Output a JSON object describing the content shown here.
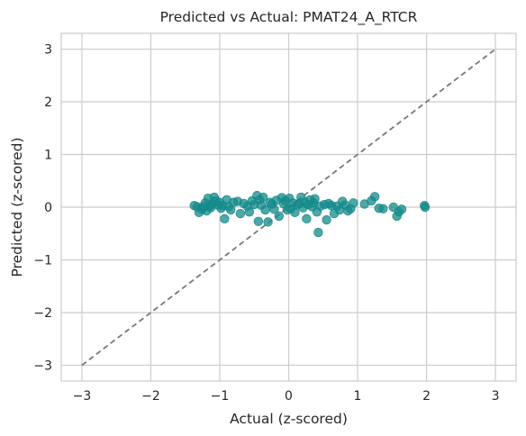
{
  "chart_data": {
    "type": "scatter",
    "title": "Predicted vs Actual: PMAT24_A_RTCR",
    "xlabel": "Actual (z-scored)",
    "ylabel": "Predicted (z-scored)",
    "xlim": [
      -3.3,
      3.3
    ],
    "ylim": [
      -3.3,
      3.3
    ],
    "xticks": [
      -3,
      -2,
      -1,
      0,
      1,
      2,
      3
    ],
    "yticks": [
      -3,
      -2,
      -1,
      0,
      1,
      2,
      3
    ],
    "xtick_labels": [
      "−3",
      "−2",
      "−1",
      "0",
      "1",
      "2",
      "3"
    ],
    "ytick_labels": [
      "−3",
      "−2",
      "−1",
      "0",
      "1",
      "2",
      "3"
    ],
    "grid": true,
    "reference_line": {
      "style": "dashed",
      "from": [
        -3,
        -3
      ],
      "to": [
        3,
        3
      ],
      "color": "#777777"
    },
    "point_color": "#148a8a",
    "points": [
      [
        -1.37,
        0.03
      ],
      [
        -1.33,
        0.01
      ],
      [
        -1.3,
        -0.1
      ],
      [
        -1.26,
        -0.04
      ],
      [
        -1.24,
        0.01
      ],
      [
        -1.21,
        0.08
      ],
      [
        -1.19,
        -0.07
      ],
      [
        -1.17,
        0.17
      ],
      [
        -1.15,
        0.02
      ],
      [
        -1.13,
        -0.01
      ],
      [
        -1.11,
        0.06
      ],
      [
        -1.08,
        0.19
      ],
      [
        -1.06,
        0.12
      ],
      [
        -1.03,
        0.04
      ],
      [
        -1.0,
        0.09
      ],
      [
        -0.98,
        -0.02
      ],
      [
        -0.96,
        0.03
      ],
      [
        -0.93,
        -0.22
      ],
      [
        -0.9,
        0.14
      ],
      [
        -0.87,
        0.01
      ],
      [
        -0.84,
        -0.05
      ],
      [
        -0.8,
        0.09
      ],
      [
        -0.74,
        0.11
      ],
      [
        -0.7,
        -0.12
      ],
      [
        -0.65,
        0.07
      ],
      [
        -0.6,
        0.02
      ],
      [
        -0.57,
        -0.09
      ],
      [
        -0.53,
        0.12
      ],
      [
        -0.5,
        0.05
      ],
      [
        -0.46,
        0.22
      ],
      [
        -0.44,
        -0.27
      ],
      [
        -0.42,
        0.14
      ],
      [
        -0.4,
        0.04
      ],
      [
        -0.37,
        0.19
      ],
      [
        -0.34,
        -0.05
      ],
      [
        -0.3,
        -0.28
      ],
      [
        -0.27,
        0.09
      ],
      [
        -0.24,
        0.06
      ],
      [
        -0.21,
        -0.04
      ],
      [
        -0.18,
        0.13
      ],
      [
        -0.14,
        -0.17
      ],
      [
        -0.1,
        0.18
      ],
      [
        -0.07,
        0.06
      ],
      [
        -0.05,
        0.12
      ],
      [
        -0.02,
        -0.05
      ],
      [
        0.01,
        0.17
      ],
      [
        0.03,
        -0.03
      ],
      [
        0.06,
        0.08
      ],
      [
        0.09,
        -0.1
      ],
      [
        0.12,
        0.04
      ],
      [
        0.15,
        0.07
      ],
      [
        0.18,
        0.19
      ],
      [
        0.21,
        -0.01
      ],
      [
        0.23,
        0.1
      ],
      [
        0.26,
        -0.22
      ],
      [
        0.28,
        0.05
      ],
      [
        0.31,
        0.14
      ],
      [
        0.34,
        0.01
      ],
      [
        0.36,
        0.08
      ],
      [
        0.38,
        0.16
      ],
      [
        0.41,
        -0.09
      ],
      [
        0.43,
        -0.48
      ],
      [
        0.46,
        0.02
      ],
      [
        0.52,
        0.05
      ],
      [
        0.55,
        -0.24
      ],
      [
        0.58,
        0.07
      ],
      [
        0.62,
        0.03
      ],
      [
        0.66,
        -0.12
      ],
      [
        0.7,
        0.02
      ],
      [
        0.74,
        -0.05
      ],
      [
        0.78,
        0.11
      ],
      [
        0.82,
        0.04
      ],
      [
        0.86,
        -0.07
      ],
      [
        0.9,
        -0.03
      ],
      [
        0.94,
        0.08
      ],
      [
        1.1,
        0.06
      ],
      [
        1.2,
        0.12
      ],
      [
        1.25,
        0.2
      ],
      [
        1.31,
        -0.02
      ],
      [
        1.37,
        -0.03
      ],
      [
        1.52,
        0.0
      ],
      [
        1.57,
        -0.17
      ],
      [
        1.6,
        -0.09
      ],
      [
        1.64,
        -0.04
      ],
      [
        1.97,
        0.03
      ],
      [
        1.98,
        0.0
      ]
    ]
  }
}
